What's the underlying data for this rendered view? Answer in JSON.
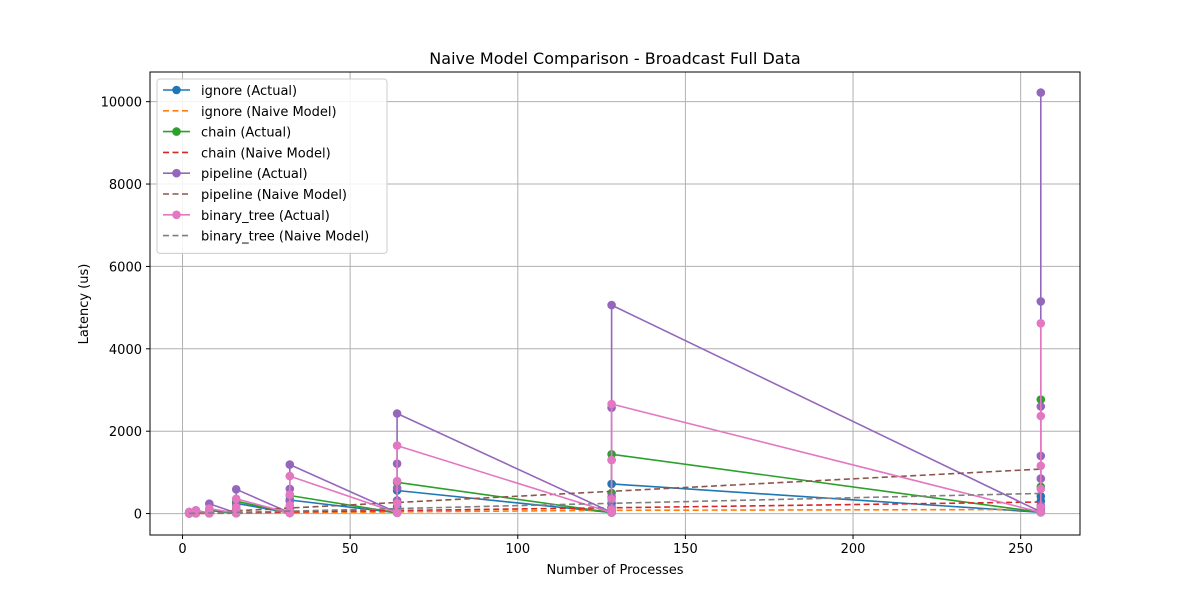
{
  "chart_data": {
    "type": "line",
    "title": "Naive Model Comparison - Broadcast Full Data",
    "xlabel": "Number of Processes",
    "ylabel": "Latency (us)",
    "xlim": [
      -9.7,
      267.7
    ],
    "ylim": [
      -520,
      10720
    ],
    "xticks": [
      0,
      50,
      100,
      150,
      200,
      250
    ],
    "yticks": [
      0,
      2000,
      4000,
      6000,
      8000,
      10000
    ],
    "grid": true,
    "legend_position": "upper left",
    "x": [
      2,
      4,
      8,
      16,
      32,
      64,
      128,
      256
    ],
    "series": [
      {
        "name": "ignore (Actual)",
        "style": "solid",
        "marker": "circle",
        "color": "#1f77b4",
        "points": [
          [
            2,
            5
          ],
          [
            2,
            8
          ],
          [
            2,
            15
          ],
          [
            2,
            25
          ],
          [
            4,
            8
          ],
          [
            4,
            15
          ],
          [
            4,
            28
          ],
          [
            4,
            45
          ],
          [
            8,
            8
          ],
          [
            8,
            15
          ],
          [
            8,
            35
          ],
          [
            8,
            75
          ],
          [
            16,
            10
          ],
          [
            16,
            30
          ],
          [
            16,
            80
          ],
          [
            16,
            250
          ],
          [
            32,
            15
          ],
          [
            32,
            40
          ],
          [
            32,
            100
          ],
          [
            32,
            330
          ],
          [
            64,
            20
          ],
          [
            64,
            60
          ],
          [
            64,
            180
          ],
          [
            64,
            560
          ],
          [
            128,
            25
          ],
          [
            128,
            80
          ],
          [
            128,
            250
          ],
          [
            128,
            720
          ],
          [
            256,
            30
          ],
          [
            256,
            100
          ],
          [
            256,
            300
          ],
          [
            256,
            420
          ]
        ]
      },
      {
        "name": "ignore (Naive Model)",
        "style": "dashed",
        "marker": "none",
        "color": "#ff7f0e",
        "points": [
          [
            2,
            1
          ],
          [
            4,
            3
          ],
          [
            8,
            5
          ],
          [
            16,
            10
          ],
          [
            32,
            20
          ],
          [
            64,
            40
          ],
          [
            128,
            80
          ],
          [
            256,
            100
          ]
        ]
      },
      {
        "name": "chain (Actual)",
        "style": "solid",
        "marker": "circle",
        "color": "#2ca02c",
        "points": [
          [
            2,
            5
          ],
          [
            2,
            10
          ],
          [
            2,
            18
          ],
          [
            2,
            30
          ],
          [
            4,
            8
          ],
          [
            4,
            18
          ],
          [
            4,
            35
          ],
          [
            4,
            55
          ],
          [
            8,
            10
          ],
          [
            8,
            20
          ],
          [
            8,
            45
          ],
          [
            8,
            95
          ],
          [
            16,
            10
          ],
          [
            16,
            35
          ],
          [
            16,
            100
          ],
          [
            16,
            300
          ],
          [
            32,
            15
          ],
          [
            32,
            50
          ],
          [
            32,
            150
          ],
          [
            32,
            440
          ],
          [
            64,
            20
          ],
          [
            64,
            80
          ],
          [
            64,
            250
          ],
          [
            64,
            760
          ],
          [
            128,
            25
          ],
          [
            128,
            100
          ],
          [
            128,
            500
          ],
          [
            128,
            1440
          ],
          [
            256,
            30
          ],
          [
            256,
            150
          ],
          [
            256,
            650
          ],
          [
            256,
            2770
          ]
        ]
      },
      {
        "name": "chain (Naive Model)",
        "style": "dashed",
        "marker": "none",
        "color": "#d62728",
        "points": [
          [
            2,
            2
          ],
          [
            4,
            5
          ],
          [
            8,
            10
          ],
          [
            16,
            20
          ],
          [
            32,
            40
          ],
          [
            64,
            75
          ],
          [
            128,
            140
          ],
          [
            256,
            280
          ]
        ]
      },
      {
        "name": "pipeline (Actual)",
        "style": "solid",
        "marker": "circle",
        "color": "#9467bd",
        "points": [
          [
            2,
            5
          ],
          [
            2,
            10
          ],
          [
            2,
            20
          ],
          [
            2,
            40
          ],
          [
            4,
            10
          ],
          [
            4,
            20
          ],
          [
            4,
            40
          ],
          [
            4,
            80
          ],
          [
            8,
            10
          ],
          [
            8,
            30
          ],
          [
            8,
            80
          ],
          [
            8,
            240
          ],
          [
            16,
            15
          ],
          [
            16,
            50
          ],
          [
            16,
            200
          ],
          [
            16,
            590
          ],
          [
            32,
            20
          ],
          [
            32,
            80
          ],
          [
            32,
            300
          ],
          [
            32,
            600
          ],
          [
            32,
            1190
          ],
          [
            64,
            25
          ],
          [
            64,
            100
          ],
          [
            64,
            320
          ],
          [
            64,
            620
          ],
          [
            64,
            1210
          ],
          [
            64,
            2430
          ],
          [
            128,
            30
          ],
          [
            128,
            150
          ],
          [
            128,
            400
          ],
          [
            128,
            1300
          ],
          [
            128,
            2570
          ],
          [
            128,
            5060
          ],
          [
            256,
            40
          ],
          [
            256,
            200
          ],
          [
            256,
            850
          ],
          [
            256,
            1400
          ],
          [
            256,
            2600
          ],
          [
            256,
            5150
          ],
          [
            256,
            10220
          ]
        ]
      },
      {
        "name": "pipeline (Naive Model)",
        "style": "dashed",
        "marker": "none",
        "color": "#8c564b",
        "points": [
          [
            2,
            8
          ],
          [
            4,
            16
          ],
          [
            8,
            33
          ],
          [
            16,
            67
          ],
          [
            32,
            135
          ],
          [
            64,
            270
          ],
          [
            128,
            540
          ],
          [
            256,
            1080
          ]
        ]
      },
      {
        "name": "binary_tree (Actual)",
        "style": "solid",
        "marker": "circle",
        "color": "#e377c2",
        "points": [
          [
            2,
            5
          ],
          [
            2,
            10
          ],
          [
            2,
            20
          ],
          [
            2,
            35
          ],
          [
            4,
            8
          ],
          [
            4,
            15
          ],
          [
            4,
            40
          ],
          [
            4,
            75
          ],
          [
            8,
            10
          ],
          [
            8,
            25
          ],
          [
            8,
            65
          ],
          [
            8,
            120
          ],
          [
            16,
            12
          ],
          [
            16,
            40
          ],
          [
            16,
            150
          ],
          [
            16,
            360
          ],
          [
            32,
            15
          ],
          [
            32,
            60
          ],
          [
            32,
            200
          ],
          [
            32,
            460
          ],
          [
            32,
            910
          ],
          [
            64,
            20
          ],
          [
            64,
            80
          ],
          [
            64,
            250
          ],
          [
            64,
            790
          ],
          [
            64,
            1650
          ],
          [
            128,
            25
          ],
          [
            128,
            100
          ],
          [
            128,
            350
          ],
          [
            128,
            1300
          ],
          [
            128,
            2660
          ],
          [
            256,
            30
          ],
          [
            256,
            150
          ],
          [
            256,
            600
          ],
          [
            256,
            1160
          ],
          [
            256,
            2370
          ],
          [
            256,
            4620
          ]
        ]
      },
      {
        "name": "binary_tree (Naive Model)",
        "style": "dashed",
        "marker": "none",
        "color": "#7f7f7f",
        "points": [
          [
            2,
            4
          ],
          [
            4,
            8
          ],
          [
            8,
            15
          ],
          [
            16,
            30
          ],
          [
            32,
            60
          ],
          [
            64,
            120
          ],
          [
            128,
            250
          ],
          [
            256,
            490
          ]
        ]
      }
    ]
  }
}
